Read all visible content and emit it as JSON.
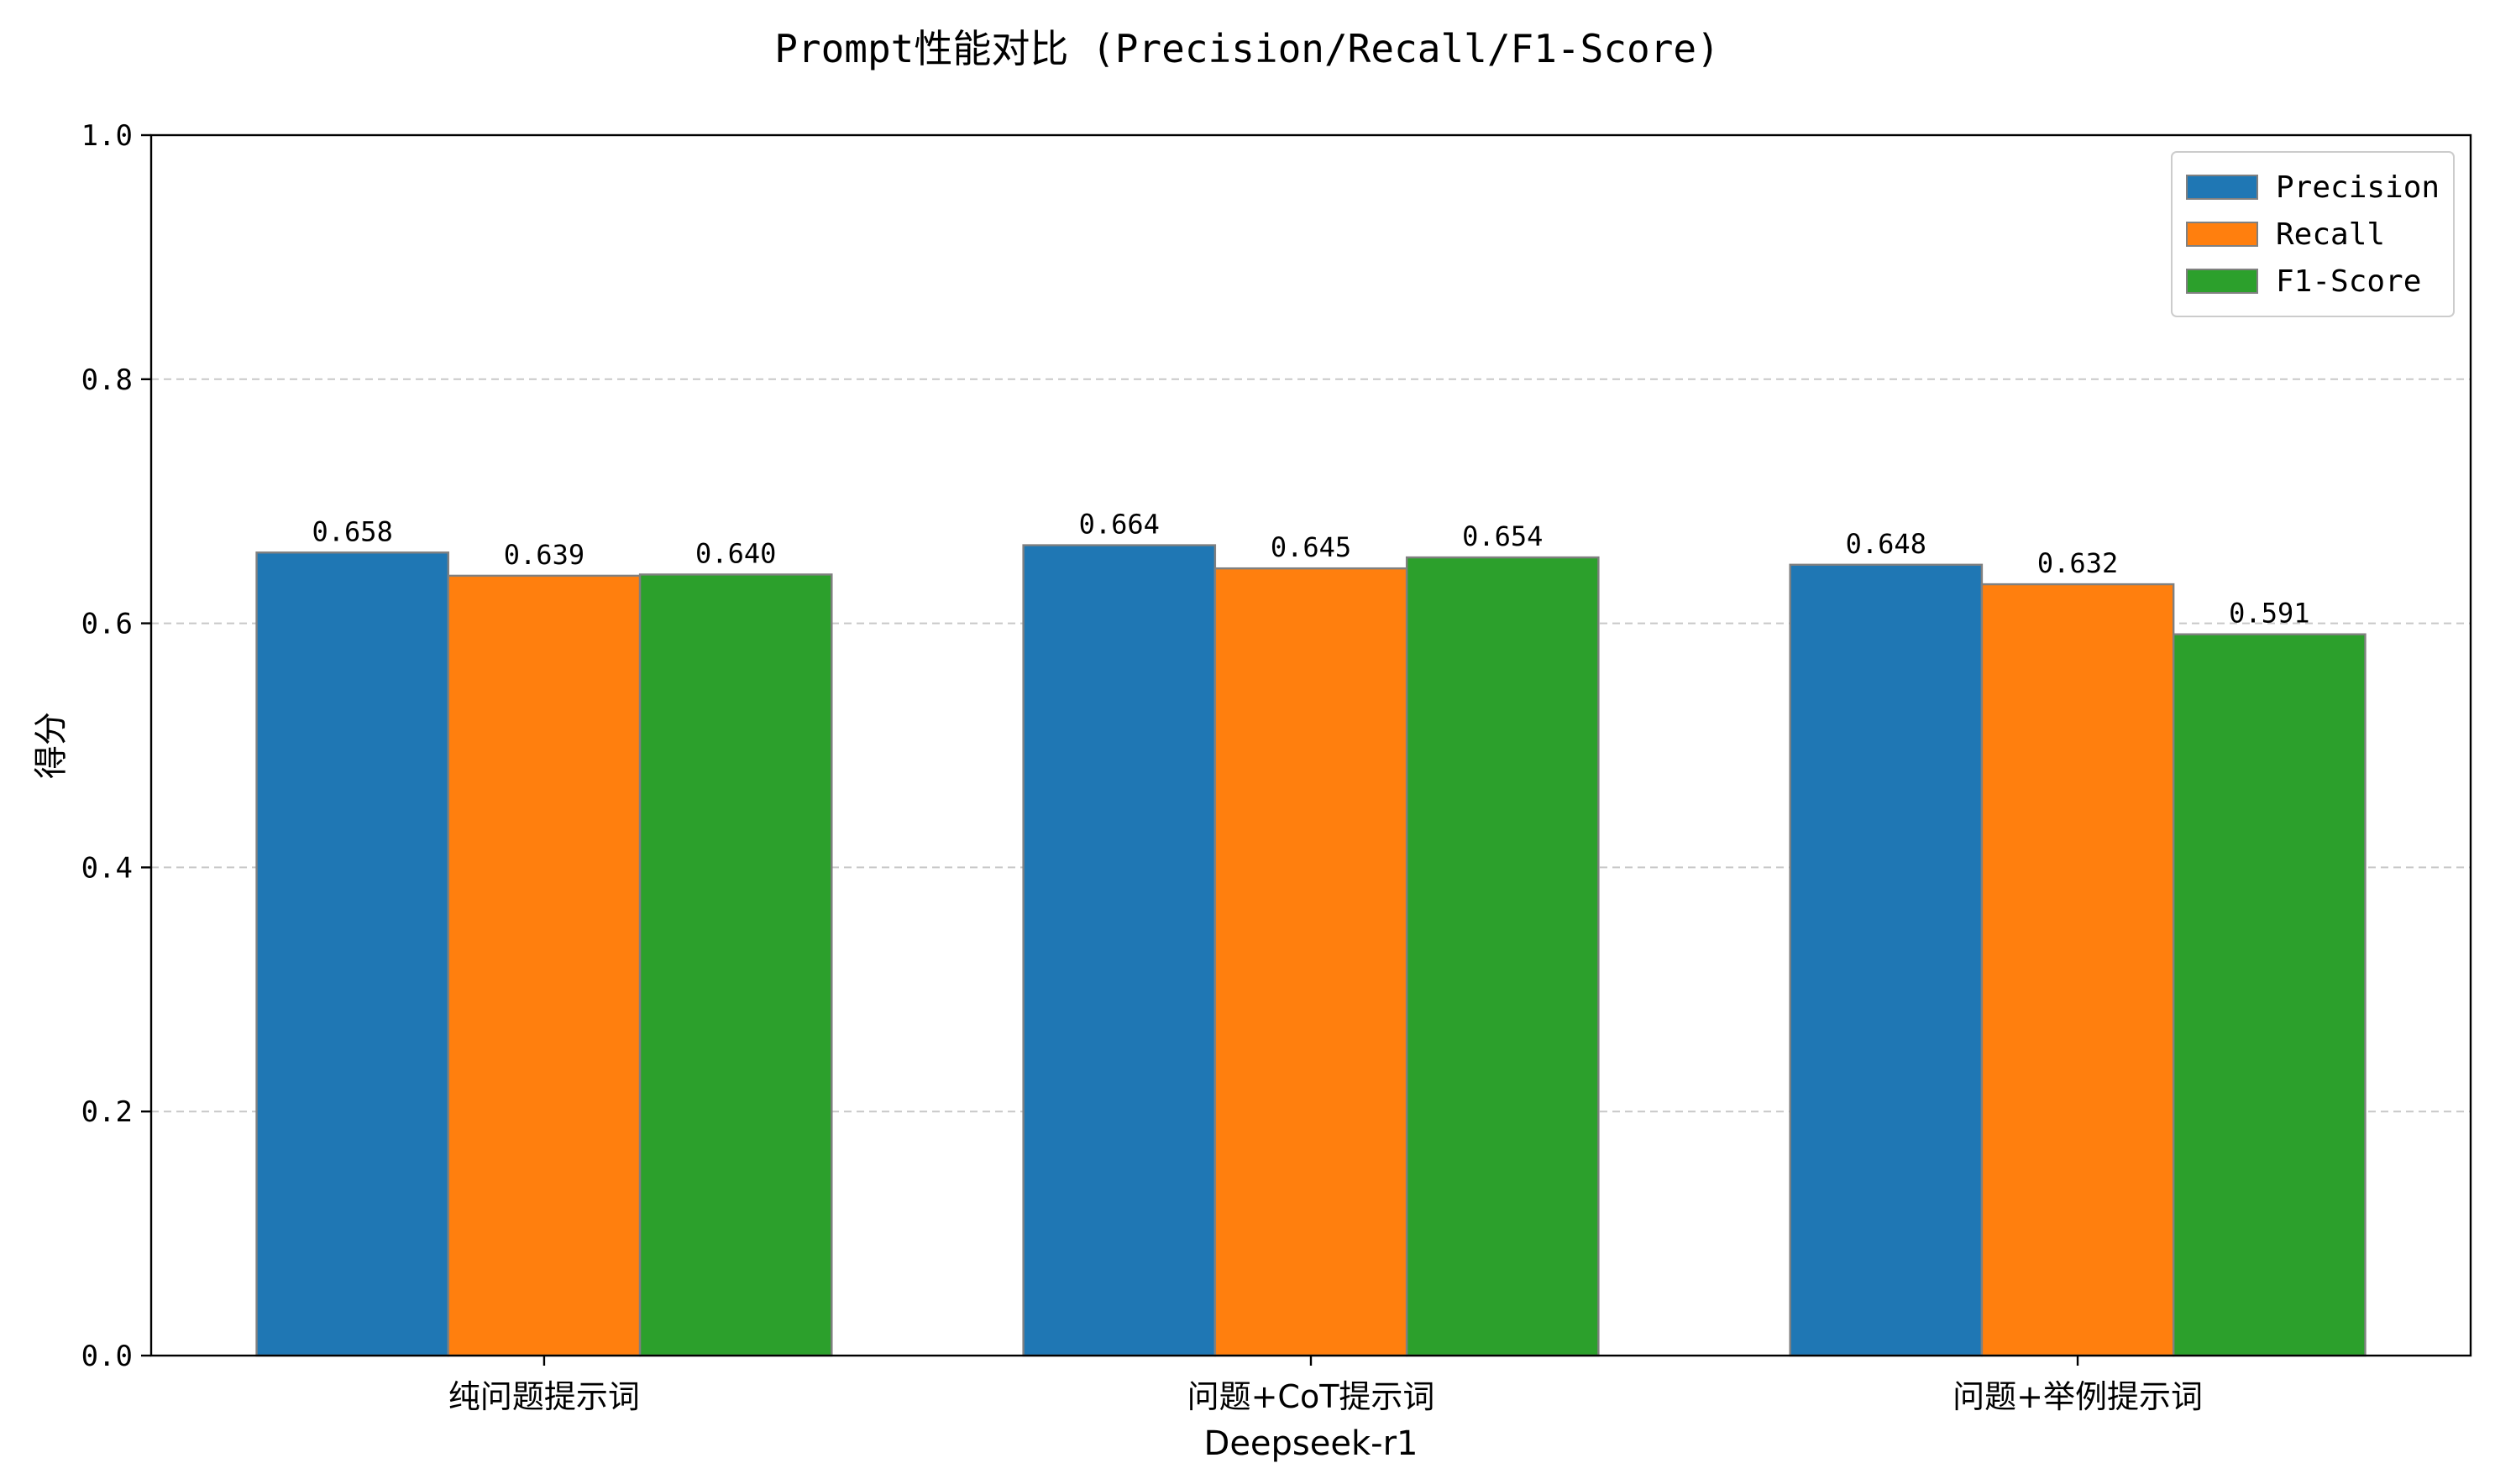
{
  "chart_data": {
    "type": "bar",
    "title": "Prompt性能对比 (Precision/Recall/F1-Score)",
    "xlabel": "Deepseek-r1",
    "ylabel": "得分",
    "ylim": [
      0,
      1.0
    ],
    "yticks": [
      0.0,
      0.2,
      0.4,
      0.6,
      0.8,
      1.0
    ],
    "ytick_labels": [
      "0.0",
      "0.2",
      "0.4",
      "0.6",
      "0.8",
      "1.0"
    ],
    "grid": "y-dashed",
    "legend_position": "top-right",
    "categories": [
      "纯问题提示词",
      "问题+CoT提示词",
      "问题+举例提示词"
    ],
    "series": [
      {
        "name": "Precision",
        "color": "#1f77b4",
        "values": [
          0.658,
          0.664,
          0.648
        ],
        "labels": [
          "0.658",
          "0.664",
          "0.648"
        ]
      },
      {
        "name": "Recall",
        "color": "#ff7f0e",
        "values": [
          0.639,
          0.645,
          0.632
        ],
        "labels": [
          "0.639",
          "0.645",
          "0.632"
        ]
      },
      {
        "name": "F1-Score",
        "color": "#2ca02c",
        "values": [
          0.64,
          0.654,
          0.591
        ],
        "labels": [
          "0.640",
          "0.654",
          "0.591"
        ]
      }
    ]
  }
}
